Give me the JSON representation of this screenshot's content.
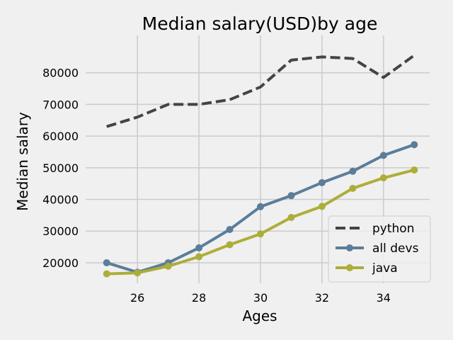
{
  "chart_data": {
    "type": "line",
    "title": "Median salary(USD)by age",
    "xlabel": "Ages",
    "ylabel": "Median salary",
    "x": [
      25,
      26,
      27,
      28,
      29,
      30,
      31,
      32,
      33,
      34,
      35
    ],
    "xticks": [
      26,
      28,
      30,
      32,
      34
    ],
    "yticks": [
      20000,
      30000,
      40000,
      50000,
      60000,
      70000,
      80000
    ],
    "xlim": [
      24.5,
      35.5
    ],
    "ylim": [
      13500,
      90000
    ],
    "grid": true,
    "legend_position": "lower-right",
    "series": [
      {
        "name": "python",
        "color": "#444444",
        "style": "dashed",
        "markers": false,
        "values": [
          63000,
          66000,
          70000,
          70000,
          71500,
          75500,
          84000,
          85000,
          84500,
          78500,
          85500
        ]
      },
      {
        "name": "all devs",
        "color": "#5a7d9a",
        "style": "solid",
        "markers": true,
        "values": [
          20000,
          17000,
          20000,
          24700,
          30500,
          37700,
          41200,
          45300,
          48900,
          53900,
          57300
        ]
      },
      {
        "name": "java",
        "color": "#adad3b",
        "style": "solid",
        "markers": true,
        "values": [
          16500,
          16800,
          18900,
          21900,
          25700,
          29100,
          34300,
          37800,
          43500,
          46800,
          49300
        ]
      }
    ]
  }
}
